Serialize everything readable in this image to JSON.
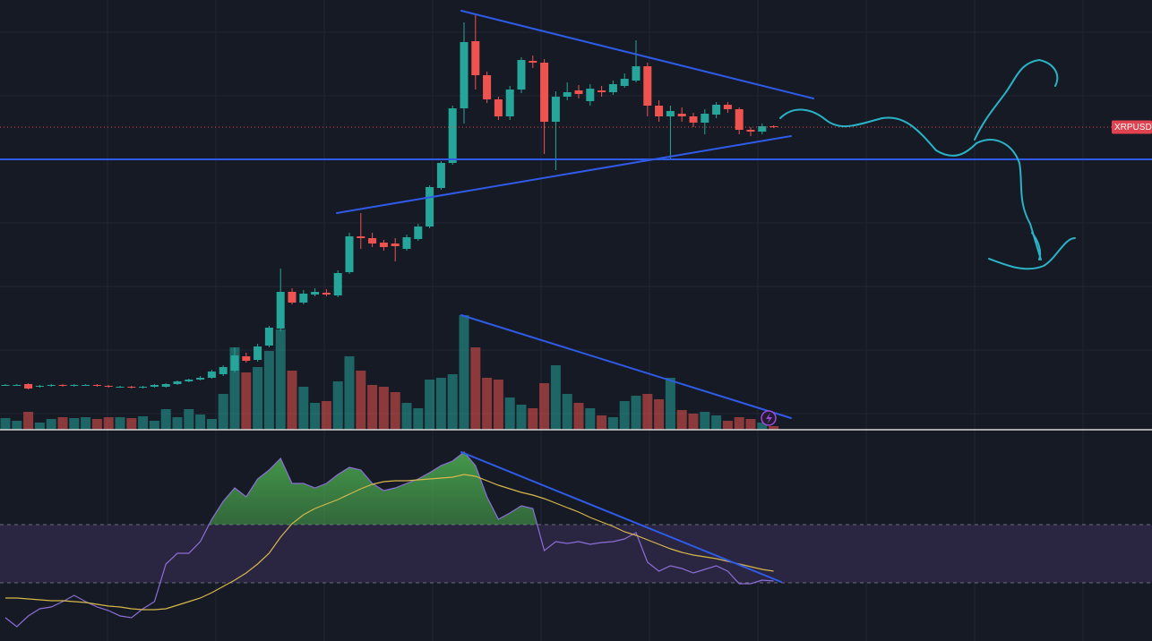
{
  "chart_data": [
    {
      "type": "candlestick",
      "symbol_label": "XRPUSDT",
      "ylim": [
        0,
        480
      ],
      "up_color": "#26a69a",
      "down_color": "#ef5350",
      "open": [
        50,
        50,
        51,
        48,
        49,
        50,
        49,
        50,
        50,
        49,
        48,
        48,
        47,
        48,
        48,
        51,
        54,
        56,
        58,
        62,
        66,
        82,
        78,
        94,
        113,
        154,
        142,
        151,
        153,
        150,
        176,
        216,
        214,
        209,
        208,
        202,
        213,
        227,
        270,
        298,
        359,
        434,
        396,
        369,
        350,
        380,
        412,
        410,
        344,
        372,
        379,
        367,
        379,
        377,
        384,
        390,
        406,
        362,
        350,
        353,
        350,
        343,
        352,
        363,
        358,
        335,
        333,
        339
      ],
      "high": [
        51,
        51,
        52,
        50,
        51,
        51,
        51,
        51,
        51,
        50,
        49,
        49,
        49,
        51,
        52,
        55,
        57,
        60,
        67,
        72,
        92,
        86,
        96,
        116,
        180,
        158,
        156,
        158,
        157,
        178,
        220,
        242,
        220,
        212,
        214,
        218,
        230,
        273,
        300,
        362,
        455,
        465,
        400,
        372,
        384,
        416,
        418,
        414,
        378,
        388,
        385,
        386,
        384,
        390,
        398,
        435,
        410,
        368,
        362,
        360,
        354,
        358,
        366,
        366,
        360,
        338,
        342,
        340
      ],
      "low": [
        49,
        49,
        45,
        47,
        48,
        48,
        48,
        49,
        48,
        47,
        47,
        46,
        46,
        47,
        47,
        50,
        53,
        55,
        57,
        60,
        64,
        75,
        76,
        92,
        110,
        140,
        140,
        149,
        149,
        148,
        174,
        202,
        204,
        200,
        188,
        200,
        211,
        225,
        268,
        296,
        342,
        380,
        365,
        346,
        346,
        376,
        404,
        308,
        290,
        368,
        370,
        362,
        372,
        374,
        382,
        388,
        350,
        344,
        302,
        344,
        338,
        330,
        348,
        354,
        330,
        328,
        330,
        337
      ],
      "close": [
        50,
        50,
        46,
        49,
        50,
        49,
        50,
        50,
        49,
        48,
        48,
        47,
        48,
        50,
        51,
        54,
        56,
        58,
        65,
        70,
        83,
        77,
        93,
        114,
        154,
        142,
        152,
        154,
        151,
        175,
        216,
        214,
        208,
        204,
        205,
        215,
        227,
        271,
        298,
        359,
        433,
        396,
        369,
        350,
        380,
        413,
        410,
        344,
        372,
        377,
        375,
        381,
        377,
        386,
        392,
        406,
        362,
        350,
        356,
        350,
        343,
        353,
        363,
        358,
        335,
        333,
        339,
        338
      ],
      "volume": [
        13,
        10,
        20,
        8,
        12,
        14,
        13,
        14,
        12,
        14,
        14,
        13,
        15,
        10,
        23,
        14,
        23,
        17,
        12,
        40,
        92,
        64,
        70,
        88,
        112,
        66,
        48,
        30,
        32,
        54,
        82,
        66,
        50,
        48,
        42,
        30,
        24,
        56,
        58,
        62,
        128,
        92,
        58,
        56,
        36,
        28,
        24,
        52,
        72,
        40,
        30,
        24,
        16,
        14,
        32,
        38,
        40,
        34,
        58,
        22,
        18,
        20,
        16,
        10,
        14,
        12,
        8,
        4
      ]
    },
    {
      "type": "line",
      "ylim": [
        0,
        236
      ],
      "bands": [
        130,
        65
      ],
      "band_color": "#2a2540",
      "series": [
        {
          "color": "#8c6fd6",
          "values": [
            26,
            16,
            28,
            36,
            38,
            44,
            51,
            44,
            38,
            34,
            28,
            26,
            36,
            44,
            86,
            98,
            98,
            111,
            136,
            156,
            171,
            161,
            181,
            191,
            204,
            176,
            176,
            171,
            176,
            186,
            194,
            191,
            176,
            168,
            171,
            176,
            181,
            188,
            196,
            201,
            211,
            196,
            161,
            136,
            143,
            151,
            148,
            101,
            111,
            109,
            111,
            108,
            110,
            111,
            114,
            121,
            88,
            78,
            84,
            81,
            76,
            80,
            84,
            78,
            64,
            64,
            68,
            67
          ]
        },
        {
          "color": "#d6b84a",
          "values": [
            48,
            48,
            47,
            46,
            45,
            45,
            44,
            43,
            41,
            39,
            38,
            36,
            35,
            35,
            36,
            40,
            44,
            48,
            54,
            61,
            68,
            76,
            86,
            98,
            116,
            131,
            141,
            148,
            153,
            158,
            164,
            170,
            175,
            178,
            179,
            179,
            180,
            181,
            182,
            183,
            186,
            184,
            179,
            174,
            170,
            166,
            163,
            159,
            154,
            149,
            144,
            138,
            133,
            128,
            122,
            118,
            113,
            108,
            103,
            99,
            96,
            94,
            92,
            89,
            86,
            83,
            80,
            78
          ]
        }
      ]
    }
  ]
}
